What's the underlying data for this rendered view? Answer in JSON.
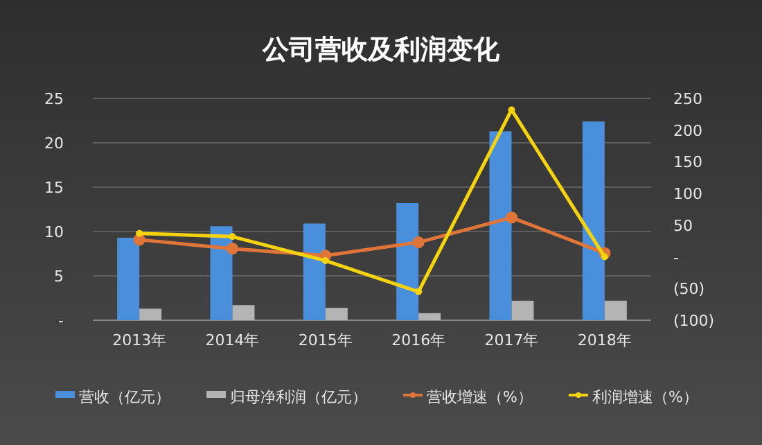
{
  "chart_data": {
    "type": "bar",
    "title": "公司营收及利润变化",
    "categories": [
      "2013年",
      "2014年",
      "2015年",
      "2016年",
      "2017年",
      "2018年"
    ],
    "series": [
      {
        "name": "营收（亿元）",
        "color": "#4a8fdc",
        "values": [
          9.3,
          10.6,
          10.9,
          13.2,
          21.3,
          22.4
        ]
      },
      {
        "name": "归母净利润（亿元）",
        "color": "#b4b4b4",
        "values": [
          1.3,
          1.7,
          1.4,
          0.8,
          2.2,
          2.2
        ]
      },
      {
        "name": "营收增速（%）",
        "type": "line",
        "axis": "y2",
        "color": "#e0753a",
        "marker": "circle",
        "values": [
          27,
          13,
          2,
          23,
          62,
          6
        ]
      },
      {
        "name": "利润增速（%）",
        "type": "line",
        "axis": "y2",
        "color": "#f5d40f",
        "marker": "circle",
        "values": [
          37,
          32,
          -6,
          -55,
          232,
          0
        ]
      }
    ],
    "ylim": [
      0,
      25
    ],
    "yticks": [
      {
        "value": 0,
        "label": "-"
      },
      5,
      10,
      15,
      20,
      25
    ],
    "y2lim": [
      -100,
      250
    ],
    "y2ticks": [
      {
        "value": -100,
        "label": "(100)"
      },
      {
        "value": -50,
        "label": "(50)"
      },
      {
        "value": 0,
        "label": "-"
      },
      50,
      100,
      150,
      200,
      250
    ],
    "grid": "y",
    "legend": "bottom"
  }
}
